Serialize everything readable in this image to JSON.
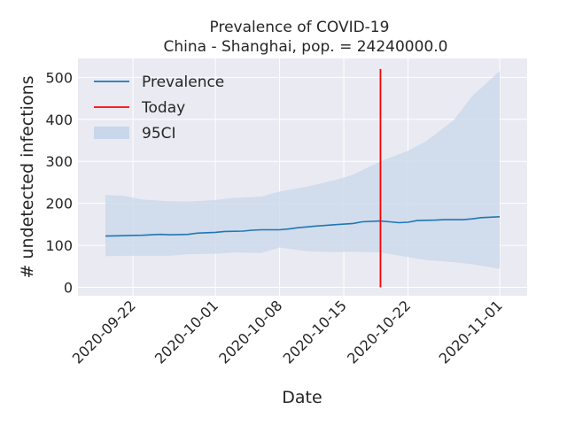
{
  "chart_data": {
    "type": "line",
    "title": "Prevalence of COVID-19",
    "subtitle": "China - Shanghai, pop. = 24240000.0",
    "xlabel": "Date",
    "ylabel": "# undetected infections",
    "xlim": [
      "2020-09-16",
      "2020-11-04"
    ],
    "ylim": [
      -20,
      545
    ],
    "x_ticks": [
      "2020-09-22",
      "2020-10-01",
      "2020-10-08",
      "2020-10-15",
      "2020-10-22",
      "2020-11-01"
    ],
    "y_ticks": [
      0,
      100,
      200,
      300,
      400,
      500
    ],
    "grid": true,
    "legend_position": "top-left",
    "colors": {
      "background": "#eaeaf2",
      "grid": "#ffffff",
      "prevalence": "#1f77b4",
      "today": "#ff0000",
      "ci_fill": "#c8d7ea"
    },
    "series": [
      {
        "name": "Prevalence",
        "points": [
          {
            "x": "2020-09-19",
            "y": 122
          },
          {
            "x": "2020-09-21",
            "y": 123
          },
          {
            "x": "2020-09-23",
            "y": 124
          },
          {
            "x": "2020-09-25",
            "y": 126
          },
          {
            "x": "2020-09-26",
            "y": 125
          },
          {
            "x": "2020-09-28",
            "y": 126
          },
          {
            "x": "2020-09-29",
            "y": 129
          },
          {
            "x": "2020-10-01",
            "y": 131
          },
          {
            "x": "2020-10-02",
            "y": 133
          },
          {
            "x": "2020-10-04",
            "y": 134
          },
          {
            "x": "2020-10-05",
            "y": 136
          },
          {
            "x": "2020-10-06",
            "y": 137
          },
          {
            "x": "2020-10-08",
            "y": 137
          },
          {
            "x": "2020-10-09",
            "y": 139
          },
          {
            "x": "2020-10-10",
            "y": 142
          },
          {
            "x": "2020-10-12",
            "y": 146
          },
          {
            "x": "2020-10-14",
            "y": 149
          },
          {
            "x": "2020-10-16",
            "y": 152
          },
          {
            "x": "2020-10-17",
            "y": 156
          },
          {
            "x": "2020-10-19",
            "y": 158
          },
          {
            "x": "2020-10-20",
            "y": 156
          },
          {
            "x": "2020-10-21",
            "y": 154
          },
          {
            "x": "2020-10-22",
            "y": 155
          },
          {
            "x": "2020-10-23",
            "y": 159
          },
          {
            "x": "2020-10-25",
            "y": 160
          },
          {
            "x": "2020-10-26",
            "y": 161
          },
          {
            "x": "2020-10-28",
            "y": 161
          },
          {
            "x": "2020-10-29",
            "y": 163
          },
          {
            "x": "2020-10-30",
            "y": 166
          },
          {
            "x": "2020-11-01",
            "y": 168
          }
        ]
      },
      {
        "name": "Today",
        "x": "2020-10-19",
        "y_range": [
          0,
          520
        ]
      },
      {
        "name": "95CI",
        "bands": [
          {
            "x": "2020-09-19",
            "lower": 74,
            "upper": 220
          },
          {
            "x": "2020-09-21",
            "lower": 75,
            "upper": 218
          },
          {
            "x": "2020-09-23",
            "lower": 75,
            "upper": 209
          },
          {
            "x": "2020-09-26",
            "lower": 75,
            "upper": 205
          },
          {
            "x": "2020-09-28",
            "lower": 79,
            "upper": 204
          },
          {
            "x": "2020-10-01",
            "lower": 80,
            "upper": 208
          },
          {
            "x": "2020-10-03",
            "lower": 83,
            "upper": 213
          },
          {
            "x": "2020-10-06",
            "lower": 82,
            "upper": 216
          },
          {
            "x": "2020-10-08",
            "lower": 95,
            "upper": 228
          },
          {
            "x": "2020-10-11",
            "lower": 86,
            "upper": 240
          },
          {
            "x": "2020-10-14",
            "lower": 84,
            "upper": 255
          },
          {
            "x": "2020-10-16",
            "lower": 85,
            "upper": 268
          },
          {
            "x": "2020-10-19",
            "lower": 83,
            "upper": 300
          },
          {
            "x": "2020-10-22",
            "lower": 72,
            "upper": 325
          },
          {
            "x": "2020-10-24",
            "lower": 65,
            "upper": 348
          },
          {
            "x": "2020-10-27",
            "lower": 60,
            "upper": 398
          },
          {
            "x": "2020-10-29",
            "lower": 55,
            "upper": 455
          },
          {
            "x": "2020-11-01",
            "lower": 44,
            "upper": 515
          }
        ]
      }
    ]
  }
}
